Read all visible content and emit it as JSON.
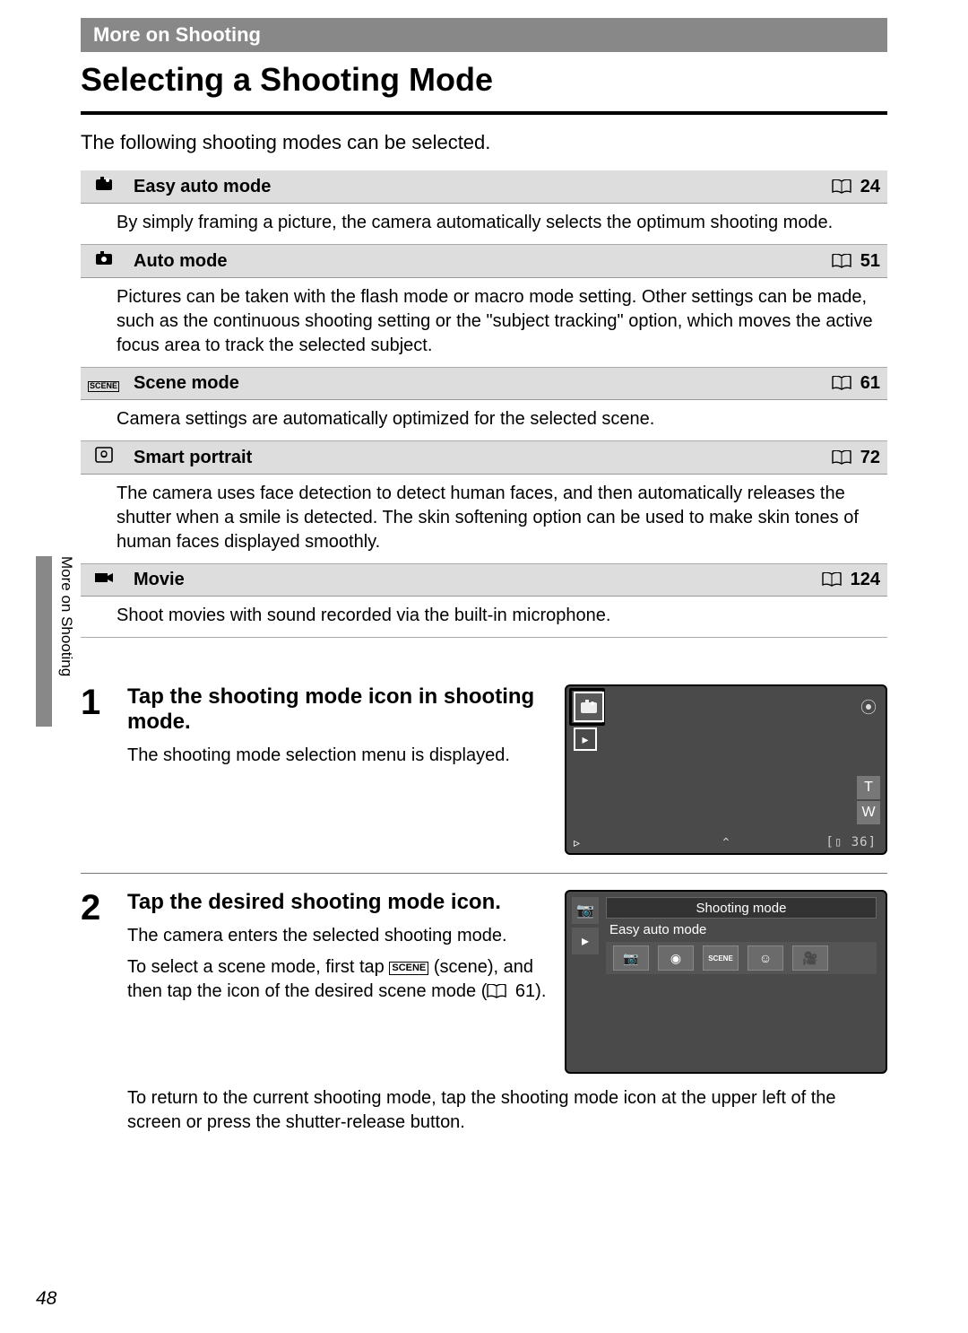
{
  "header": {
    "section": "More on Shooting",
    "title": "Selecting a Shooting Mode",
    "intro": "The following shooting modes can be selected."
  },
  "side_tab": "More on Shooting",
  "modes": [
    {
      "name": "Easy auto mode",
      "page": "24",
      "desc": "By simply framing a picture, the camera automatically selects the optimum shooting mode.",
      "icon": "easy-auto-icon"
    },
    {
      "name": "Auto mode",
      "page": "51",
      "desc": "Pictures can be taken with the flash mode or macro mode setting. Other settings can be made, such as the continuous shooting setting or the \"subject tracking\" option, which moves the active focus area to track the selected subject.",
      "icon": "auto-icon"
    },
    {
      "name": "Scene mode",
      "page": "61",
      "desc": "Camera settings are automatically optimized for the selected scene.",
      "icon": "scene-icon"
    },
    {
      "name": "Smart portrait",
      "page": "72",
      "desc": "The camera uses face detection to detect human faces, and then automatically releases the shutter when a smile is detected. The skin softening option can be used to make skin tones of human faces displayed smoothly.",
      "icon": "smart-portrait-icon"
    },
    {
      "name": "Movie",
      "page": "124",
      "desc": "Shoot movies with sound recorded via the built-in microphone.",
      "icon": "movie-icon"
    }
  ],
  "steps": [
    {
      "num": "1",
      "title": "Tap the shooting mode icon in shooting mode.",
      "subs": [
        "The shooting mode selection menu is displayed."
      ],
      "figure": "lcd"
    },
    {
      "num": "2",
      "title": "Tap the desired shooting mode icon.",
      "subs": [
        "The camera enters the selected shooting mode.",
        "To select a scene mode, first tap ⓢ (scene), and then tap the icon of the desired scene mode (📖 61).",
        "To return to the current shooting mode, tap the shooting mode icon at the upper left of the screen or press the shutter-release button."
      ],
      "figure": "menu"
    }
  ],
  "screen1": {
    "t": "T",
    "w": "W",
    "count": "[▯ 36]"
  },
  "screen2": {
    "title": "Shooting mode",
    "selected": "Easy auto mode"
  },
  "page_number": "48",
  "scene_inline_ref": "61"
}
